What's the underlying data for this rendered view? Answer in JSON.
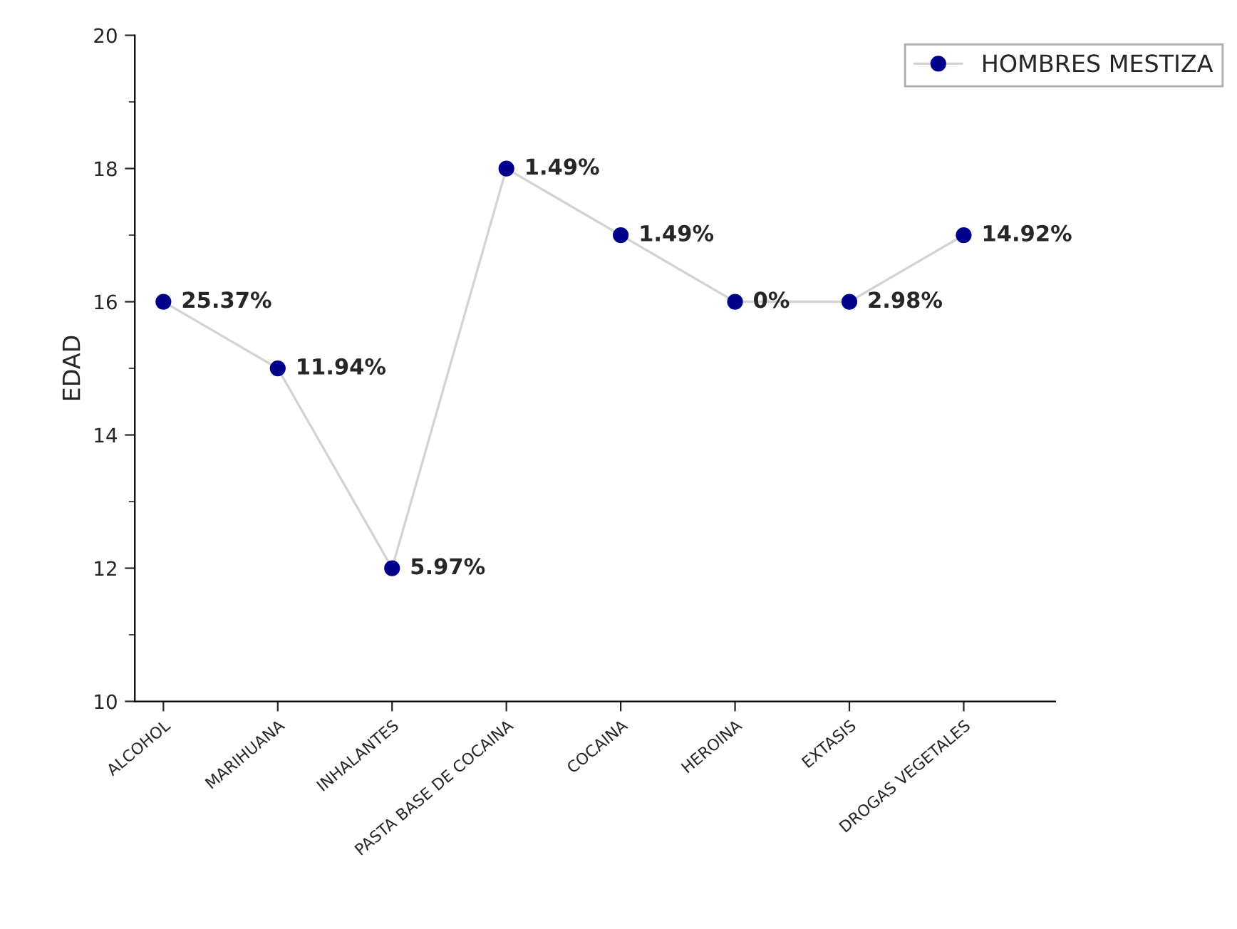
{
  "chart_data": {
    "type": "line",
    "ylabel": "EDAD",
    "categories": [
      "ALCOHOL",
      "MARIHUANA",
      "INHALANTES",
      "PASTA BASE DE COCAINA",
      "COCAINA",
      "HEROINA",
      "EXTASIS",
      "DROGAS VEGETALES"
    ],
    "series": [
      {
        "name": "HOMBRES MESTIZA",
        "color": "#00008b",
        "values": [
          16,
          15,
          12,
          18,
          17,
          16,
          16,
          17
        ]
      }
    ],
    "annotations": [
      {
        "text": "25.37%",
        "x": "ALCOHOL",
        "y": 16
      },
      {
        "text": "11.94%",
        "x": "MARIHUANA",
        "y": 15
      },
      {
        "text": "5.97%",
        "x": "INHALANTES",
        "y": 12
      },
      {
        "text": "1.49%",
        "x": "PASTA BASE DE COCAINA",
        "y": 18
      },
      {
        "text": "1.49%",
        "x": "COCAINA",
        "y": 17
      },
      {
        "text": "0%",
        "x": "HEROINA",
        "y": 16
      },
      {
        "text": "2.98%",
        "x": "EXTASIS",
        "y": 16
      },
      {
        "text": "14.92%",
        "x": "DROGAS VEGETALES",
        "y": 17
      }
    ],
    "ylim": [
      10,
      20
    ],
    "yticks": [
      10,
      12,
      14,
      16,
      18,
      20
    ],
    "marker": "circle",
    "line_style": "solid",
    "legend": "top right",
    "grid": false
  }
}
